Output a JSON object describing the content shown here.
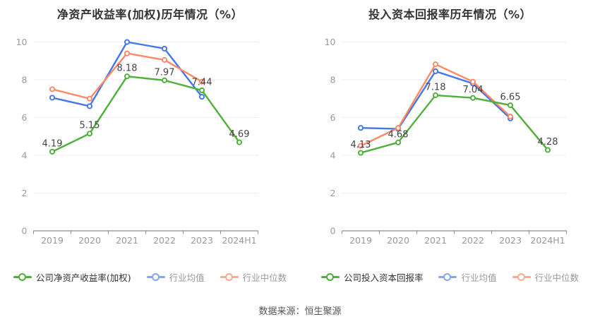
{
  "footer": {
    "source_text": "数据来源：恒生聚源"
  },
  "colors": {
    "company_line": "#4db039",
    "mean_line": "#4377e8",
    "median_line": "#ff8866",
    "mean_legend_icon": "#82a5ed",
    "median_legend_icon": "#f9ab90",
    "grid_line": "#e8eef4",
    "axis_line": "#8c8c8c",
    "axis_text": "#999999",
    "point_label": "#444444",
    "title_text": "#333333",
    "legend_company_text": "#333333",
    "legend_industry_text": "#999999",
    "background": "#ffffff"
  },
  "chart_data": [
    {
      "type": "line",
      "title": "净资产收益率(加权)历年情况（%）",
      "categories": [
        "2019",
        "2020",
        "2021",
        "2022",
        "2023",
        "2024H1"
      ],
      "ylim": [
        0,
        10
      ],
      "y_ticks": [
        0,
        2,
        4,
        6,
        8,
        10
      ],
      "grid": true,
      "legend_position": "bottom",
      "series": [
        {
          "name": "公司净资产收益率(加权)",
          "color_key": "company_line",
          "legend_icon_key": "company_line",
          "text_key": "legend_company_text",
          "values": [
            4.19,
            5.15,
            8.18,
            7.97,
            7.44,
            4.69
          ],
          "show_labels": true
        },
        {
          "name": "行业均值",
          "color_key": "mean_line",
          "legend_icon_key": "mean_legend_icon",
          "text_key": "legend_industry_text",
          "values": [
            7.05,
            6.6,
            10.0,
            9.65,
            7.1,
            null
          ],
          "show_labels": false
        },
        {
          "name": "行业中位数",
          "color_key": "median_line",
          "legend_icon_key": "median_legend_icon",
          "text_key": "legend_industry_text",
          "values": [
            7.5,
            7.0,
            9.4,
            9.05,
            7.9,
            null
          ],
          "show_labels": false
        }
      ]
    },
    {
      "type": "line",
      "title": "投入资本回报率历年情况（%）",
      "categories": [
        "2019",
        "2020",
        "2021",
        "2022",
        "2023",
        "2024H1"
      ],
      "ylim": [
        0,
        10
      ],
      "y_ticks": [
        0,
        2,
        4,
        6,
        8,
        10
      ],
      "grid": true,
      "legend_position": "bottom",
      "series": [
        {
          "name": "公司投入资本回报率",
          "color_key": "company_line",
          "legend_icon_key": "company_line",
          "text_key": "legend_company_text",
          "values": [
            4.13,
            4.68,
            7.18,
            7.04,
            6.65,
            4.28
          ],
          "show_labels": true
        },
        {
          "name": "行业均值",
          "color_key": "mean_line",
          "legend_icon_key": "mean_legend_icon",
          "text_key": "legend_industry_text",
          "values": [
            5.45,
            5.4,
            8.45,
            7.8,
            5.95,
            null
          ],
          "show_labels": false
        },
        {
          "name": "行业中位数",
          "color_key": "median_line",
          "legend_icon_key": "median_legend_icon",
          "text_key": "legend_industry_text",
          "values": [
            4.5,
            5.45,
            8.82,
            7.9,
            6.05,
            null
          ],
          "show_labels": false
        }
      ]
    }
  ]
}
